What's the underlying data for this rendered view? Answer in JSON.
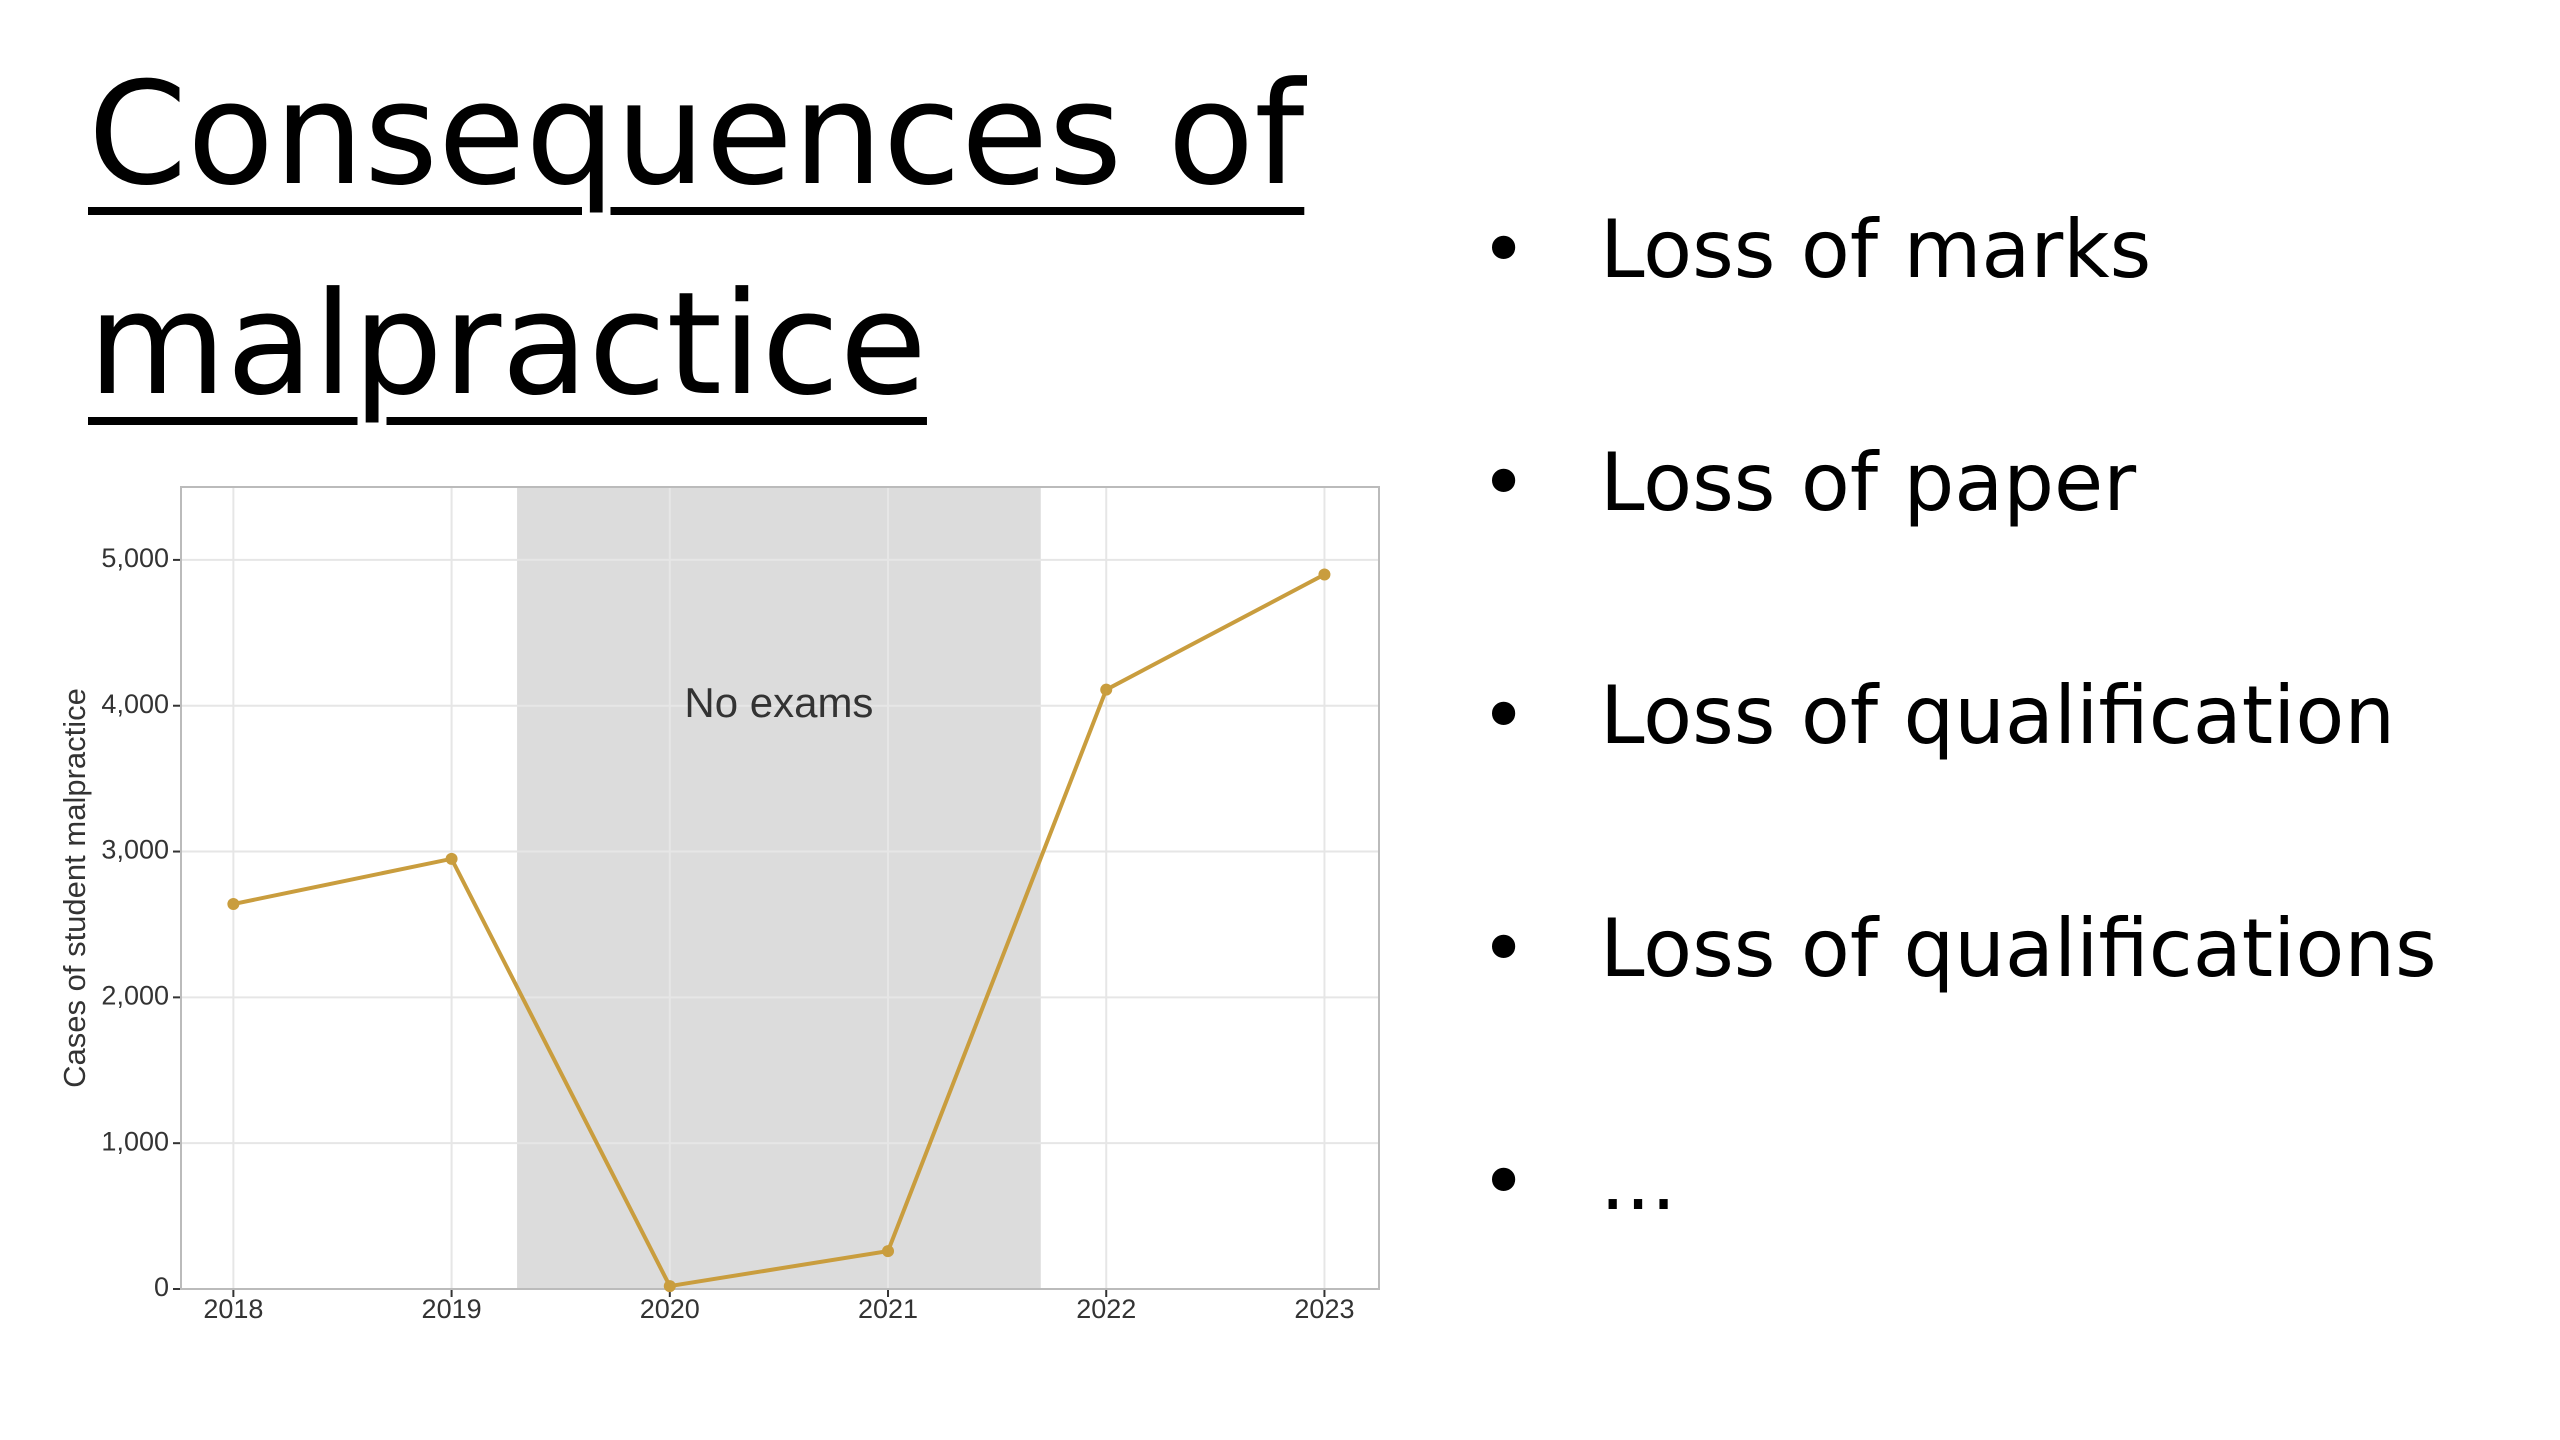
{
  "title": "Consequences of malpractice",
  "bullets": [
    "Loss of marks",
    "Loss of paper",
    "Loss of qualification",
    "Loss of qualifications",
    "..."
  ],
  "chart_data": {
    "type": "line",
    "x": [
      2018,
      2019,
      2020,
      2021,
      2022,
      2023
    ],
    "values": [
      2640,
      2950,
      20,
      260,
      4110,
      4900
    ],
    "color": "#c99d3e",
    "y_label": "Cases of student malpractice",
    "xlim": [
      2017.76,
      2023.25
    ],
    "xticks": [
      2018,
      2019,
      2020,
      2021,
      2022,
      2023
    ],
    "ylim": [
      0,
      5500
    ],
    "yticks": [
      0,
      {
        "value": 1000,
        "label": "1,000"
      },
      {
        "value": 2000,
        "label": "2,000"
      },
      {
        "value": 3000,
        "label": "3,000"
      },
      {
        "value": 4000,
        "label": "4,000"
      },
      {
        "value": 5000,
        "label": "5,000"
      }
    ],
    "grid": true,
    "shaded_region": {
      "x": [
        2019.3,
        2021.7
      ],
      "label": "No exams",
      "color": "#dcdcdc"
    }
  }
}
